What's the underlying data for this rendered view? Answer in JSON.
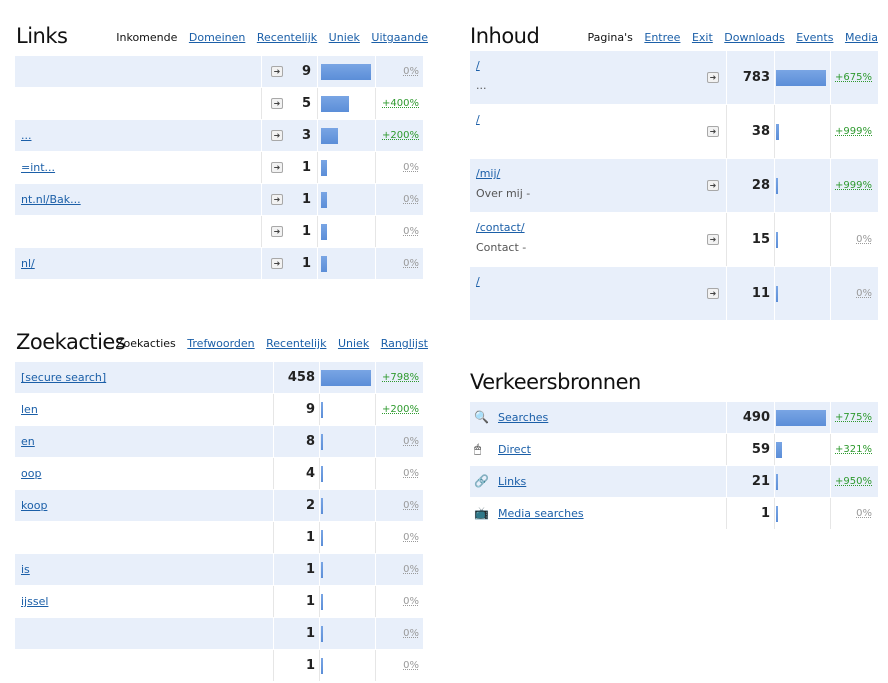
{
  "links": {
    "title": "Links",
    "tabs": [
      "Inkomende",
      "Domeinen",
      "Recentelijk",
      "Uniek",
      "Uitgaande"
    ],
    "rows": [
      {
        "label": "",
        "count": "9",
        "pct": "0%",
        "bar": 1.0
      },
      {
        "label": "",
        "count": "5",
        "pct": "+400%",
        "bar": 0.56
      },
      {
        "label": "...",
        "count": "3",
        "pct": "+200%",
        "bar": 0.34
      },
      {
        "label": "=int...",
        "count": "1",
        "pct": "0%",
        "bar": 0.11
      },
      {
        "label": "nt.nl/Bak...",
        "count": "1",
        "pct": "0%",
        "bar": 0.11
      },
      {
        "label": "",
        "count": "1",
        "pct": "0%",
        "bar": 0.11
      },
      {
        "label": "nl/",
        "count": "1",
        "pct": "0%",
        "bar": 0.11
      }
    ]
  },
  "inhoud": {
    "title": "Inhoud",
    "tabs": [
      "Pagina's",
      "Entree",
      "Exit",
      "Downloads",
      "Events",
      "Media"
    ],
    "rows": [
      {
        "label": "/",
        "sub": "...",
        "count": "783",
        "pct": "+675%",
        "bar": 1.0
      },
      {
        "label": "/",
        "sub": "",
        "count": "38",
        "pct": "+999%",
        "bar": 0.05
      },
      {
        "label": "/mij/",
        "sub": "Over mij -",
        "count": "28",
        "pct": "+999%",
        "bar": 0.04
      },
      {
        "label": "/contact/",
        "sub": "Contact -",
        "count": "15",
        "pct": "0%",
        "bar": 0.02
      },
      {
        "label": "/",
        "sub": "",
        "count": "11",
        "pct": "0%",
        "bar": 0.02
      }
    ]
  },
  "zoekacties": {
    "title": "Zoekacties",
    "tabs": [
      "Zoekacties",
      "Trefwoorden",
      "Recentelijk",
      "Uniek",
      "Ranglijst"
    ],
    "rows": [
      {
        "label": "[secure search]",
        "count": "458",
        "pct": "+798%",
        "bar": 1.0
      },
      {
        "label": "len",
        "count": "9",
        "pct": "+200%",
        "bar": 0.02
      },
      {
        "label": "en",
        "count": "8",
        "pct": "0%",
        "bar": 0.02
      },
      {
        "label": "oop",
        "count": "4",
        "pct": "0%",
        "bar": 0.01
      },
      {
        "label": "koop",
        "count": "2",
        "pct": "0%",
        "bar": 0.01
      },
      {
        "label": "",
        "count": "1",
        "pct": "0%",
        "bar": 0.01
      },
      {
        "label": "is",
        "count": "1",
        "pct": "0%",
        "bar": 0.01
      },
      {
        "label": "ijssel",
        "count": "1",
        "pct": "0%",
        "bar": 0.01
      },
      {
        "label": "",
        "count": "1",
        "pct": "0%",
        "bar": 0.01
      },
      {
        "label": "",
        "count": "1",
        "pct": "0%",
        "bar": 0.01
      }
    ]
  },
  "verkeersbronnen": {
    "title": "Verkeersbronnen",
    "rows": [
      {
        "icon": "search-icon",
        "label": "Searches",
        "count": "490",
        "pct": "+775%",
        "bar": 1.0
      },
      {
        "icon": "mouse-icon",
        "label": "Direct",
        "count": "59",
        "pct": "+321%",
        "bar": 0.12
      },
      {
        "icon": "chain-link-icon",
        "label": "Links",
        "count": "21",
        "pct": "+950%",
        "bar": 0.04
      },
      {
        "icon": "tv-icon",
        "label": "Media searches",
        "count": "1",
        "pct": "0%",
        "bar": 0.01
      }
    ]
  },
  "colors": {
    "bar": "#5b8ed8",
    "alt_row": "#e8effa",
    "link": "#1b5fa8",
    "positive": "#2e9a2e",
    "zero": "#9a9a9a"
  }
}
